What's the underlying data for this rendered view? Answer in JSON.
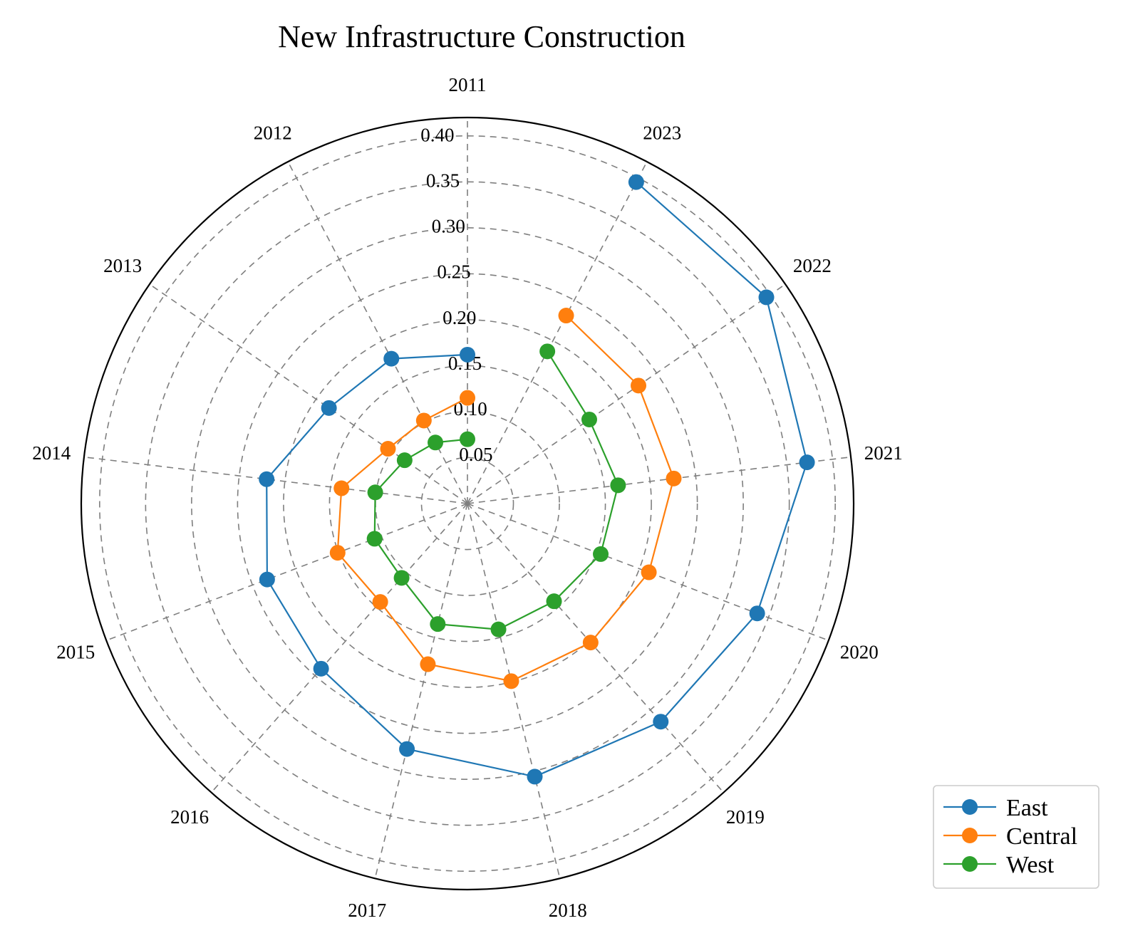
{
  "chart_data": {
    "type": "radar",
    "title": "New Infrastructure Construction",
    "categories": [
      "2011",
      "2012",
      "2013",
      "2014",
      "2015",
      "2016",
      "2017",
      "2018",
      "2019",
      "2020",
      "2021",
      "2022",
      "2023"
    ],
    "radial_ticks": [
      "0.05",
      "0.10",
      "0.15",
      "0.20",
      "0.25",
      "0.30",
      "0.35",
      "0.40"
    ],
    "rlim": [
      0,
      0.42
    ],
    "grid": true,
    "legend_position": "bottom-right",
    "series": [
      {
        "name": "East",
        "color": "#1f77b4",
        "values": [
          0.162,
          0.178,
          0.183,
          0.22,
          0.233,
          0.24,
          0.275,
          0.306,
          0.317,
          0.337,
          0.372,
          0.395,
          0.395
        ]
      },
      {
        "name": "Central",
        "color": "#ff7f0e",
        "values": [
          0.115,
          0.102,
          0.105,
          0.138,
          0.151,
          0.143,
          0.18,
          0.199,
          0.202,
          0.211,
          0.226,
          0.226,
          0.231
        ]
      },
      {
        "name": "West",
        "color": "#2ca02c",
        "values": [
          0.07,
          0.075,
          0.083,
          0.101,
          0.108,
          0.108,
          0.135,
          0.141,
          0.142,
          0.155,
          0.165,
          0.161,
          0.187
        ]
      }
    ]
  }
}
